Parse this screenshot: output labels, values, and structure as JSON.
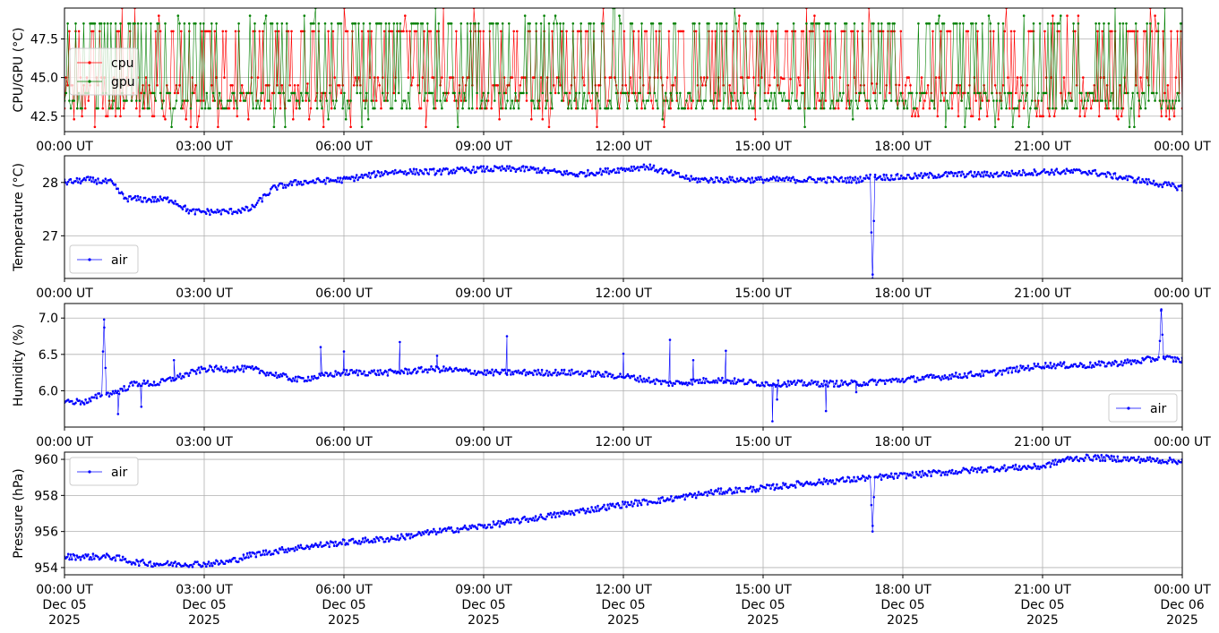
{
  "chart_data": [
    {
      "type": "line",
      "ylabel": "CPU/GPU (°C)",
      "ylim": [
        41.5,
        49.5
      ],
      "yticks": [
        "42.5",
        "45.0",
        "47.5"
      ],
      "ytick_values": [
        42.5,
        45.0,
        47.5
      ],
      "x_start": "2025-12-05T00:00Z",
      "x_end": "2025-12-06T00:00Z",
      "grid": true,
      "legend_placement": "upper-left",
      "series": [
        {
          "name": "cpu",
          "color": "#ff0000",
          "levels": [
            42.5,
            43.0,
            43.5,
            44.0,
            44.5,
            45.0,
            48.0,
            48.5
          ],
          "sample_x": [
            "00:00",
            "03:00",
            "06:00",
            "09:00",
            "12:00",
            "15:00",
            "18:00",
            "21:00",
            "24:00"
          ],
          "sample_y": [
            44.0,
            43.5,
            45.0,
            45.0,
            45.0,
            45.0,
            44.5,
            44.5,
            44.5
          ]
        },
        {
          "name": "gpu",
          "color": "#008000",
          "levels": [
            43.0,
            43.5,
            44.0,
            45.0,
            48.5
          ],
          "sample_x": [
            "00:00",
            "03:00",
            "06:00",
            "09:00",
            "12:00",
            "15:00",
            "18:00",
            "21:00",
            "24:00"
          ],
          "sample_y": [
            44.0,
            43.5,
            45.0,
            45.0,
            45.0,
            45.0,
            45.0,
            45.0,
            44.0
          ]
        }
      ]
    },
    {
      "type": "line",
      "ylabel": "Temperature (°C)",
      "ylim": [
        26.2,
        28.5
      ],
      "yticks": [
        "27",
        "28"
      ],
      "ytick_values": [
        27,
        28
      ],
      "grid": true,
      "legend_placement": "lower-left",
      "series": [
        {
          "name": "air",
          "color": "#0000ff",
          "x_hours": [
            0,
            0.5,
            1,
            1.3,
            1.8,
            2.3,
            2.7,
            3.0,
            3.5,
            4.0,
            4.5,
            5.0,
            6.0,
            7.0,
            8.0,
            9.0,
            10.0,
            11.0,
            12.0,
            12.5,
            13.5,
            14.5,
            15.0,
            16.0,
            17.0,
            17.3,
            17.35,
            17.4,
            18.0,
            19.0,
            20.0,
            21.0,
            22.0,
            23.0,
            24.0
          ],
          "y": [
            28.0,
            28.05,
            28.0,
            27.7,
            27.68,
            27.68,
            27.45,
            27.45,
            27.45,
            27.5,
            27.9,
            28.0,
            28.05,
            28.2,
            28.2,
            28.25,
            28.25,
            28.15,
            28.25,
            28.3,
            28.05,
            28.05,
            28.05,
            28.05,
            28.05,
            28.1,
            26.2,
            28.1,
            28.1,
            28.15,
            28.15,
            28.2,
            28.2,
            28.05,
            27.9
          ]
        }
      ]
    },
    {
      "type": "line",
      "ylabel": "Humidity (%)",
      "ylim": [
        5.5,
        7.2
      ],
      "yticks": [
        "6.0",
        "6.5",
        "7.0"
      ],
      "ytick_values": [
        6.0,
        6.5,
        7.0
      ],
      "grid": true,
      "legend_placement": "lower-right",
      "series": [
        {
          "name": "air",
          "color": "#0000ff",
          "x_hours": [
            0,
            0.5,
            0.8,
            0.85,
            0.9,
            1.2,
            1.5,
            2.0,
            3.0,
            4.0,
            5.0,
            6.0,
            7.0,
            8.0,
            9.0,
            10.0,
            11.0,
            12.0,
            13.0,
            14.0,
            15.0,
            15.5,
            16.0,
            17.0,
            18.0,
            19.0,
            20.0,
            21.0,
            22.0,
            23.0,
            23.5,
            23.55,
            23.6,
            24.0
          ],
          "y": [
            5.85,
            5.85,
            5.95,
            6.98,
            5.95,
            6.0,
            6.1,
            6.1,
            6.3,
            6.3,
            6.15,
            6.25,
            6.25,
            6.3,
            6.25,
            6.25,
            6.25,
            6.2,
            6.1,
            6.15,
            6.1,
            6.1,
            6.1,
            6.1,
            6.15,
            6.2,
            6.25,
            6.35,
            6.35,
            6.4,
            6.45,
            7.12,
            6.45,
            6.42
          ],
          "spikes_x_hours": [
            1.15,
            1.65,
            2.35,
            5.5,
            6.0,
            7.2,
            8.0,
            9.5,
            12.0,
            13.0,
            13.5,
            14.2,
            15.2,
            15.3,
            16.35,
            17.0
          ],
          "spikes_y": [
            5.68,
            5.78,
            6.42,
            6.6,
            6.54,
            6.67,
            6.48,
            6.75,
            6.51,
            6.7,
            6.42,
            6.55,
            5.58,
            5.88,
            5.72,
            5.98
          ]
        }
      ]
    },
    {
      "type": "line",
      "ylabel": "Pressure (hPa)",
      "ylim": [
        953.6,
        960.4
      ],
      "yticks": [
        "954",
        "956",
        "958",
        "960"
      ],
      "ytick_values": [
        954,
        956,
        958,
        960
      ],
      "grid": true,
      "legend_placement": "upper-left",
      "series": [
        {
          "name": "air",
          "color": "#0000ff",
          "x_hours": [
            0,
            0.5,
            1.0,
            1.5,
            2.0,
            3.0,
            3.5,
            4.0,
            5.0,
            6.0,
            7.0,
            8.0,
            9.0,
            10.0,
            11.0,
            12.0,
            13.0,
            14.0,
            15.0,
            16.0,
            17.0,
            17.3,
            17.35,
            17.4,
            18.0,
            19.0,
            20.0,
            21.0,
            21.5,
            22.0,
            23.0,
            24.0
          ],
          "y": [
            954.6,
            954.6,
            954.6,
            954.3,
            954.2,
            954.2,
            954.3,
            954.7,
            955.1,
            955.4,
            955.6,
            956.0,
            956.3,
            956.7,
            957.1,
            957.5,
            957.8,
            958.2,
            958.4,
            958.7,
            958.9,
            959.0,
            956.0,
            959.0,
            959.1,
            959.3,
            959.5,
            959.6,
            960.0,
            960.1,
            960.0,
            959.9
          ]
        }
      ]
    }
  ],
  "xticks": {
    "labels_time": [
      "00:00 UT",
      "03:00 UT",
      "06:00 UT",
      "09:00 UT",
      "12:00 UT",
      "15:00 UT",
      "18:00 UT",
      "21:00 UT",
      "00:00 UT"
    ],
    "labels_date": [
      "Dec 05",
      "Dec 05",
      "Dec 05",
      "Dec 05",
      "Dec 05",
      "Dec 05",
      "Dec 05",
      "Dec 05",
      "Dec 06"
    ],
    "labels_year": [
      "2025",
      "2025",
      "2025",
      "2025",
      "2025",
      "2025",
      "2025",
      "2025",
      "2025"
    ]
  }
}
